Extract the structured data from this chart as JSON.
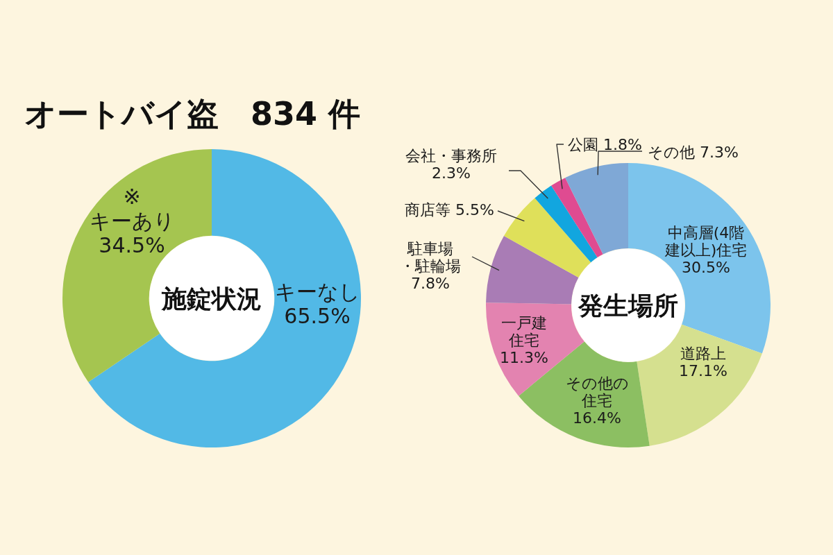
{
  "chart_data": [
    {
      "type": "other",
      "title": "オートバイ盗　834 件"
    },
    {
      "type": "donut",
      "title": "施錠状況",
      "categories": [
        "キーなし",
        "※キーあり"
      ],
      "values": [
        65.5,
        34.5
      ],
      "colors": [
        "#52b9e6",
        "#a5c550"
      ],
      "value_labels": [
        "65.5%",
        "34.5%"
      ]
    },
    {
      "type": "donut",
      "title": "発生場所",
      "categories": [
        "中高層(4階建以上)住宅",
        "道路上",
        "その他の住宅",
        "一戸建住宅",
        "駐車場・駐輪場",
        "商店等",
        "会社・事務所",
        "公園",
        "その他"
      ],
      "values": [
        30.5,
        17.1,
        16.4,
        11.3,
        7.8,
        5.5,
        2.3,
        1.8,
        7.3
      ],
      "colors": [
        "#7cc4ec",
        "#d5e08f",
        "#8cbf62",
        "#e383b0",
        "#a97cb5",
        "#dfe05a",
        "#12a6df",
        "#df4b91",
        "#7fa8d6"
      ],
      "value_labels": [
        "30.5%",
        "17.1%",
        "16.4%",
        "11.3%",
        "7.8%",
        "5.5%",
        "2.3%",
        "1.8%",
        "7.3%"
      ]
    }
  ]
}
